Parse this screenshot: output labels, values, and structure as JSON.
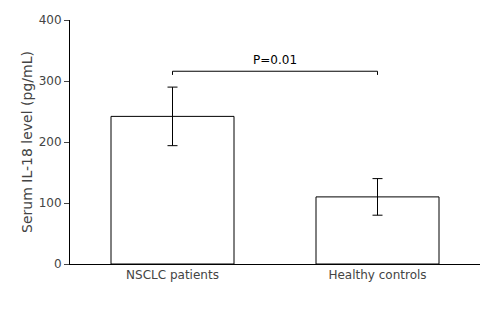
{
  "chart_data": {
    "type": "bar",
    "categories": [
      "NSCLC patients",
      "Healthy controls"
    ],
    "values": [
      242,
      110
    ],
    "errors": [
      48,
      30
    ],
    "colors": [
      "white",
      "white"
    ],
    "ylabel": "Serum IL-18 level (pg/mL)",
    "ylim": [
      0,
      400
    ],
    "yticks": [
      0,
      100,
      200,
      300,
      400
    ],
    "grid": false,
    "annotations": [
      {
        "text": "P=0.01",
        "from": "NSCLC patients",
        "to": "Healthy controls",
        "bracket_y": 310,
        "bracket_h": 6
      }
    ]
  }
}
